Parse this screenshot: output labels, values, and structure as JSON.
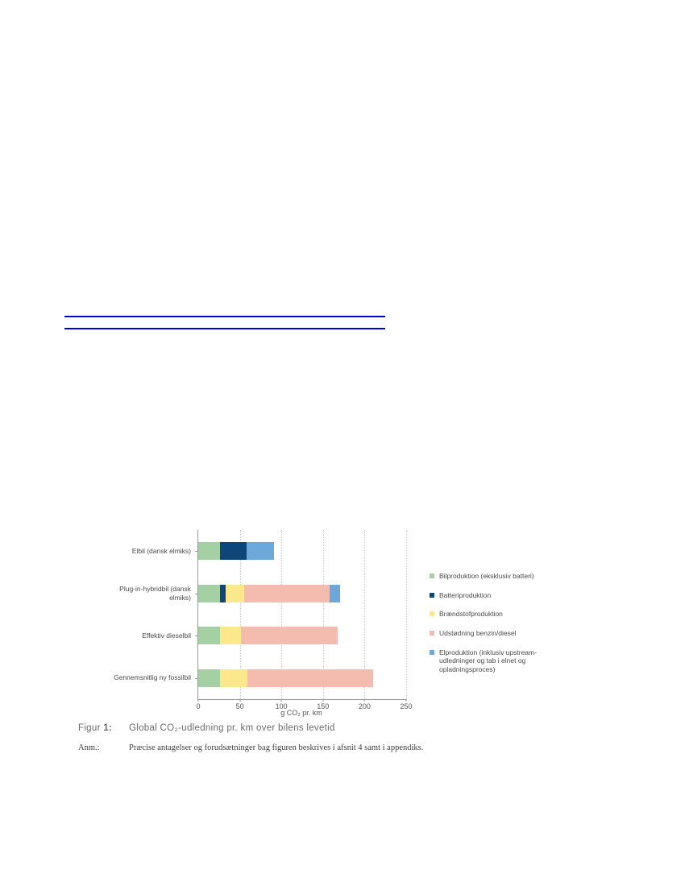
{
  "page": {
    "background": "#ffffff",
    "rule_color": "#0000dd"
  },
  "chart_data": {
    "type": "bar",
    "orientation": "horizontal",
    "stacked": true,
    "grid": "dotted-vertical",
    "legend_position": "right",
    "categories": [
      "Elbil (dansk elmiks)",
      "Plug-in-hybridbil (dansk elmiks)",
      "Effektiv dieselbil",
      "Gennemsnitlig ny fossilbil"
    ],
    "categories_display": [
      "Elbil (dansk elmiks)",
      "Plug-in-hybridbil (dansk\nelmiks)",
      "Effektiv dieselbil",
      "Gennemsnitlig ny fossilbil"
    ],
    "series": [
      {
        "name": "Bilproduktion (eksklusiv batteri)",
        "color": "#a5d0a3",
        "values": [
          26,
          26,
          26,
          26
        ]
      },
      {
        "name": "Batteriproduktion",
        "color": "#0e4679",
        "values": [
          32,
          7,
          0,
          0
        ]
      },
      {
        "name": "Brændstofproduktion",
        "color": "#fbe88d",
        "values": [
          0,
          22,
          25,
          33
        ]
      },
      {
        "name": "Udstødning benzin/diesel",
        "color": "#f4bcae",
        "values": [
          0,
          103,
          117,
          151
        ]
      },
      {
        "name": "Elproduktion (inklusiv upstream-udledninger og tab i elnet og opladningsproces)",
        "legend_display": "Elproduktion (inklusiv upstream-\nudledninger og tab i elnet og\nopladningsproces)",
        "color": "#6ca9da",
        "values": [
          33,
          13,
          0,
          0
        ]
      }
    ],
    "totals": [
      91,
      171,
      168,
      210
    ],
    "xlabel": "g CO₂ pr. km",
    "xticks": [
      0,
      50,
      100,
      150,
      200,
      250
    ],
    "xlim": [
      0,
      250
    ],
    "axis_color": "#9a9a9a",
    "gridline_color": "#c9c9c9"
  },
  "figure": {
    "caption_label": "Figur",
    "caption_number": "1:",
    "caption_text": "Global CO₂-udledning pr. km over bilens levetid",
    "note_label": "Anm.:",
    "note_text": "Præcise antagelser og forudsætninger bag figuren beskrives i afsnit 4 samt i appendiks."
  }
}
